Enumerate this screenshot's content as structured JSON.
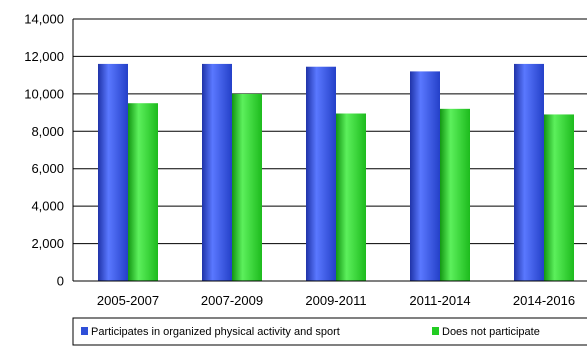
{
  "chart_data": {
    "type": "bar",
    "categories": [
      "2005-2007",
      "2007-2009",
      "2009-2011",
      "2011-2014",
      "2014-2016"
    ],
    "series": [
      {
        "name": "Participates in organized physical activity and sport",
        "values": [
          11600,
          11600,
          11450,
          11200,
          11600
        ],
        "color": "#2f4fd8"
      },
      {
        "name": "Does not participate",
        "values": [
          9500,
          10000,
          8950,
          9200,
          8900
        ],
        "color": "#22cc22"
      }
    ],
    "ylim": [
      0,
      14000
    ],
    "yticks": [
      "0",
      "2,000",
      "4,000",
      "6,000",
      "8,000",
      "10,000",
      "12,000",
      "14,000"
    ],
    "ytick_values": [
      0,
      2000,
      4000,
      6000,
      8000,
      10000,
      12000,
      14000
    ],
    "grid": true,
    "legend_position": "bottom"
  }
}
